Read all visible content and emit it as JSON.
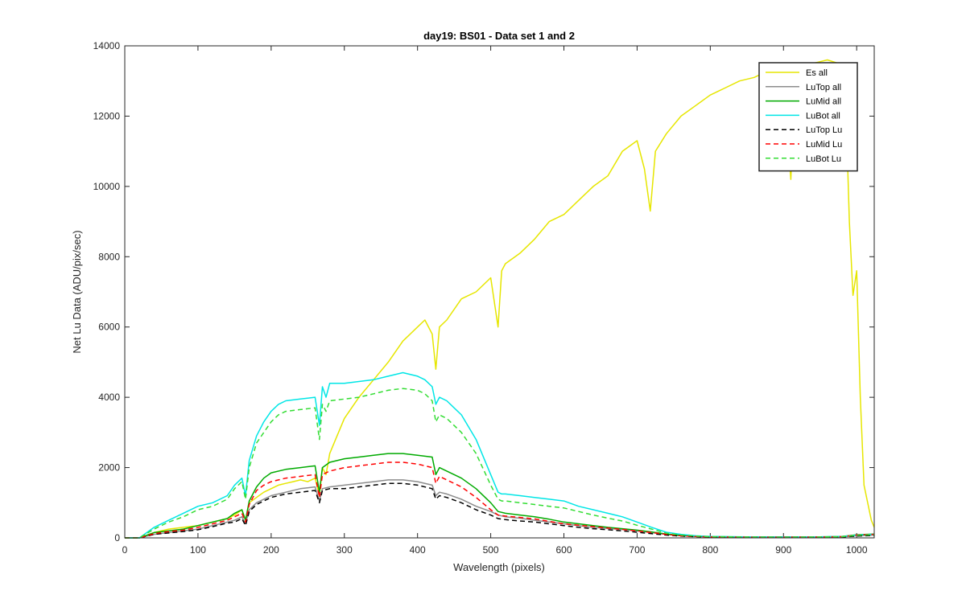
{
  "chart_data": {
    "type": "line",
    "title": "day19: BS01 - Data set 1 and 2",
    "xlabel": "Wavelength (pixels)",
    "ylabel": "Net Lu Data (ADU/pix/sec)",
    "xlim": [
      0,
      1024
    ],
    "ylim": [
      0,
      14000
    ],
    "xticks": [
      0,
      100,
      200,
      300,
      400,
      500,
      600,
      700,
      800,
      900,
      1000
    ],
    "yticks": [
      0,
      2000,
      4000,
      6000,
      8000,
      10000,
      12000,
      14000
    ],
    "grid": false,
    "legend_position": "top-right",
    "series": [
      {
        "name": "Es  all",
        "color": "#e6e600",
        "dash": "solid",
        "x": [
          0,
          20,
          40,
          60,
          80,
          100,
          120,
          140,
          150,
          160,
          165,
          170,
          180,
          190,
          200,
          210,
          220,
          230,
          240,
          250,
          260,
          266,
          270,
          275,
          280,
          290,
          300,
          320,
          340,
          360,
          380,
          400,
          410,
          420,
          425,
          430,
          440,
          460,
          480,
          500,
          510,
          515,
          520,
          540,
          560,
          580,
          600,
          620,
          640,
          660,
          680,
          700,
          710,
          718,
          725,
          740,
          760,
          780,
          800,
          820,
          840,
          860,
          880,
          900,
          910,
          915,
          920,
          940,
          960,
          975,
          985,
          990,
          995,
          1000,
          1005,
          1010,
          1020,
          1024
        ],
        "y": [
          0,
          0,
          150,
          250,
          300,
          350,
          450,
          550,
          650,
          800,
          500,
          1000,
          1150,
          1300,
          1400,
          1500,
          1550,
          1600,
          1650,
          1600,
          1700,
          1200,
          2000,
          1800,
          2400,
          2900,
          3400,
          4000,
          4500,
          5000,
          5600,
          6000,
          6200,
          5800,
          4800,
          6000,
          6200,
          6800,
          7000,
          7400,
          6000,
          7600,
          7800,
          8100,
          8500,
          9000,
          9200,
          9600,
          10000,
          10300,
          11000,
          11300,
          10500,
          9300,
          11000,
          11500,
          12000,
          12300,
          12600,
          12800,
          13000,
          13100,
          13300,
          13200,
          10200,
          12500,
          13400,
          13500,
          13600,
          13500,
          12500,
          9000,
          6900,
          7600,
          4000,
          1500,
          500,
          300
        ]
      },
      {
        "name": "LuTop  all",
        "color": "#8c8c8c",
        "dash": "solid",
        "x": [
          0,
          20,
          40,
          60,
          80,
          100,
          120,
          140,
          150,
          160,
          165,
          170,
          180,
          190,
          200,
          220,
          240,
          260,
          266,
          270,
          280,
          300,
          320,
          340,
          360,
          380,
          400,
          420,
          425,
          430,
          440,
          460,
          480,
          500,
          510,
          520,
          540,
          560,
          580,
          600,
          620,
          640,
          660,
          680,
          700,
          720,
          740,
          760,
          780,
          800,
          850,
          900,
          950,
          980,
          1000,
          1024
        ],
        "y": [
          0,
          0,
          100,
          150,
          200,
          250,
          350,
          450,
          500,
          600,
          400,
          800,
          1000,
          1100,
          1200,
          1300,
          1400,
          1450,
          1050,
          1400,
          1450,
          1500,
          1550,
          1600,
          1650,
          1650,
          1600,
          1500,
          1200,
          1300,
          1250,
          1100,
          900,
          750,
          650,
          600,
          560,
          500,
          450,
          400,
          350,
          300,
          270,
          240,
          200,
          150,
          100,
          60,
          40,
          30,
          20,
          20,
          25,
          30,
          60,
          80
        ]
      },
      {
        "name": "LuMid  all",
        "color": "#00aa00",
        "dash": "solid",
        "x": [
          0,
          20,
          40,
          60,
          80,
          100,
          120,
          140,
          150,
          160,
          165,
          170,
          180,
          190,
          200,
          220,
          240,
          260,
          266,
          270,
          280,
          300,
          320,
          340,
          360,
          380,
          400,
          420,
          425,
          430,
          440,
          460,
          480,
          500,
          510,
          520,
          540,
          560,
          580,
          600,
          620,
          640,
          660,
          680,
          700,
          720,
          740,
          760,
          780,
          800,
          850,
          900,
          950,
          980,
          1000,
          1024
        ],
        "y": [
          0,
          0,
          150,
          200,
          250,
          350,
          450,
          550,
          700,
          800,
          500,
          1050,
          1450,
          1700,
          1850,
          1950,
          2000,
          2050,
          1300,
          2000,
          2150,
          2250,
          2300,
          2350,
          2400,
          2400,
          2350,
          2300,
          1800,
          2000,
          1900,
          1700,
          1400,
          1000,
          750,
          700,
          650,
          600,
          530,
          450,
          400,
          350,
          300,
          260,
          220,
          170,
          110,
          70,
          50,
          35,
          25,
          25,
          30,
          40,
          90,
          110
        ]
      },
      {
        "name": "LuBot  all",
        "color": "#00e6e6",
        "dash": "solid",
        "x": [
          0,
          20,
          40,
          60,
          80,
          100,
          120,
          140,
          150,
          160,
          165,
          170,
          180,
          190,
          200,
          210,
          220,
          240,
          260,
          266,
          270,
          275,
          280,
          300,
          320,
          340,
          360,
          380,
          400,
          410,
          420,
          425,
          430,
          440,
          460,
          480,
          500,
          510,
          515,
          520,
          540,
          560,
          580,
          600,
          620,
          640,
          660,
          680,
          700,
          720,
          740,
          760,
          780,
          800,
          850,
          900,
          950,
          980,
          1000,
          1024
        ],
        "y": [
          0,
          0,
          300,
          500,
          700,
          900,
          1000,
          1200,
          1500,
          1700,
          1200,
          2200,
          2900,
          3300,
          3600,
          3800,
          3900,
          3950,
          4000,
          3200,
          4300,
          4000,
          4400,
          4400,
          4450,
          4500,
          4600,
          4700,
          4600,
          4500,
          4300,
          3800,
          4000,
          3900,
          3500,
          2800,
          1800,
          1300,
          1250,
          1250,
          1200,
          1150,
          1100,
          1050,
          900,
          800,
          700,
          600,
          450,
          300,
          160,
          100,
          60,
          40,
          30,
          25,
          30,
          40,
          80,
          100
        ]
      },
      {
        "name": "LuTop  Lu",
        "color": "#000000",
        "dash": "dashed",
        "x": [
          0,
          20,
          40,
          60,
          80,
          100,
          120,
          140,
          150,
          160,
          165,
          170,
          180,
          190,
          200,
          220,
          240,
          260,
          266,
          270,
          280,
          300,
          320,
          340,
          360,
          380,
          400,
          420,
          425,
          430,
          440,
          460,
          480,
          500,
          510,
          520,
          540,
          560,
          580,
          600,
          620,
          640,
          660,
          680,
          700,
          720,
          740,
          760,
          780,
          800,
          850,
          900,
          950,
          980,
          1000,
          1024
        ],
        "y": [
          0,
          0,
          100,
          140,
          180,
          230,
          320,
          420,
          450,
          550,
          350,
          750,
          950,
          1050,
          1150,
          1250,
          1300,
          1350,
          1000,
          1350,
          1400,
          1400,
          1450,
          1500,
          1550,
          1550,
          1500,
          1400,
          1100,
          1200,
          1150,
          1000,
          800,
          650,
          550,
          520,
          480,
          450,
          400,
          350,
          300,
          260,
          230,
          200,
          160,
          120,
          80,
          50,
          35,
          25,
          20,
          20,
          20,
          25,
          50,
          70
        ]
      },
      {
        "name": "LuMid  Lu",
        "color": "#ff0000",
        "dash": "dashed",
        "x": [
          0,
          20,
          40,
          60,
          80,
          100,
          120,
          140,
          150,
          160,
          165,
          170,
          180,
          190,
          200,
          220,
          240,
          260,
          266,
          270,
          280,
          300,
          320,
          340,
          360,
          380,
          400,
          420,
          425,
          430,
          440,
          460,
          480,
          500,
          510,
          520,
          540,
          560,
          580,
          600,
          620,
          640,
          660,
          680,
          700,
          720,
          740,
          760,
          780,
          800,
          850,
          900,
          950,
          980,
          1000,
          1024
        ],
        "y": [
          0,
          0,
          120,
          180,
          220,
          300,
          400,
          500,
          600,
          700,
          450,
          950,
          1350,
          1500,
          1600,
          1700,
          1750,
          1800,
          1150,
          1800,
          1900,
          2000,
          2050,
          2100,
          2150,
          2150,
          2100,
          2000,
          1550,
          1750,
          1650,
          1450,
          1150,
          800,
          650,
          620,
          580,
          540,
          470,
          400,
          360,
          320,
          280,
          240,
          200,
          150,
          100,
          60,
          40,
          30,
          20,
          20,
          25,
          35,
          80,
          100
        ]
      },
      {
        "name": "LuBot  Lu",
        "color": "#33dd33",
        "dash": "dashed",
        "x": [
          0,
          20,
          40,
          60,
          80,
          100,
          120,
          140,
          150,
          160,
          165,
          170,
          180,
          190,
          200,
          210,
          220,
          240,
          260,
          266,
          270,
          275,
          280,
          300,
          320,
          340,
          360,
          380,
          400,
          410,
          420,
          425,
          430,
          440,
          460,
          480,
          500,
          510,
          515,
          520,
          540,
          560,
          580,
          600,
          620,
          640,
          660,
          680,
          700,
          720,
          740,
          760,
          780,
          800,
          850,
          900,
          950,
          980,
          1000,
          1024
        ],
        "y": [
          0,
          0,
          250,
          450,
          600,
          800,
          900,
          1100,
          1400,
          1600,
          1100,
          2000,
          2700,
          3000,
          3300,
          3500,
          3600,
          3650,
          3700,
          2800,
          3800,
          3600,
          3900,
          3950,
          4000,
          4100,
          4200,
          4250,
          4200,
          4100,
          3900,
          3300,
          3500,
          3400,
          3000,
          2400,
          1500,
          1100,
          1050,
          1050,
          1000,
          950,
          900,
          850,
          750,
          650,
          560,
          480,
          360,
          250,
          130,
          80,
          50,
          35,
          25,
          20,
          25,
          35,
          70,
          90
        ]
      }
    ]
  }
}
